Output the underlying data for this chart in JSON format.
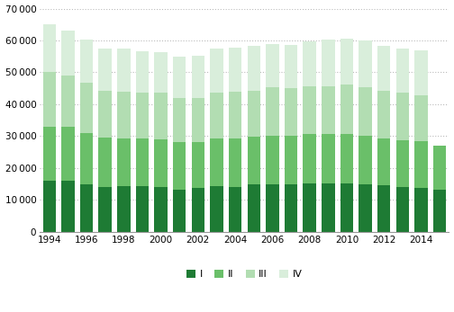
{
  "years": [
    1994,
    1995,
    1996,
    1997,
    1998,
    1999,
    2000,
    2001,
    2002,
    2003,
    2004,
    2005,
    2006,
    2007,
    2008,
    2009,
    2010,
    2011,
    2012,
    2013,
    2014,
    2015
  ],
  "Q1": [
    16000,
    16000,
    14800,
    13900,
    14300,
    14200,
    13900,
    13200,
    13700,
    14200,
    13900,
    14700,
    14700,
    14800,
    15000,
    15000,
    15000,
    14800,
    14500,
    13900,
    13600,
    13200
  ],
  "Q2": [
    17000,
    16800,
    16200,
    15500,
    15000,
    14900,
    15000,
    14800,
    14500,
    15100,
    15300,
    15100,
    15500,
    15200,
    15700,
    15500,
    15600,
    15200,
    14800,
    14900,
    14700,
    13800
  ],
  "Q3": [
    17000,
    16200,
    15700,
    14900,
    14700,
    14500,
    14700,
    14000,
    13600,
    14300,
    14700,
    14400,
    15000,
    15000,
    15000,
    15200,
    15700,
    15300,
    15000,
    14900,
    14600,
    0
  ],
  "Q4": [
    15200,
    14200,
    13700,
    13200,
    13400,
    13100,
    12700,
    12900,
    13300,
    13800,
    13800,
    14000,
    13800,
    13600,
    14100,
    14600,
    14400,
    14600,
    14000,
    13800,
    14100,
    0
  ],
  "colors": [
    "#1e7b34",
    "#6abf69",
    "#b2ddb2",
    "#d9eedb"
  ],
  "ylim": [
    0,
    70000
  ],
  "yticks": [
    0,
    10000,
    20000,
    30000,
    40000,
    50000,
    60000,
    70000
  ],
  "bg_color": "#ffffff",
  "grid_color": "#bbbbbb",
  "legend_labels": [
    "I",
    "II",
    "III",
    "IV"
  ]
}
